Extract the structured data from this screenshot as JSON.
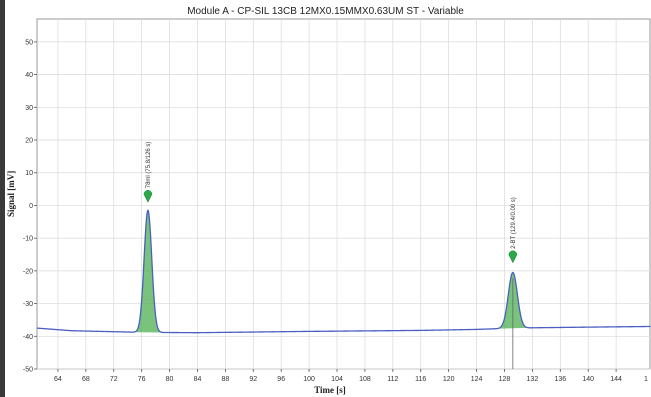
{
  "chart_data": {
    "type": "line",
    "title": "Module A - CP-SIL 13CB 12MX0.15MMX0.63UM ST - Variable",
    "xlabel": "Time [s]",
    "ylabel": "Signal [mV]",
    "xlim": [
      61,
      149
    ],
    "ylim": [
      -50,
      57
    ],
    "x_ticks": [
      64,
      68,
      72,
      76,
      80,
      84,
      88,
      92,
      96,
      100,
      104,
      108,
      112,
      116,
      120,
      124,
      128,
      132,
      136,
      140,
      144
    ],
    "x_tick_labels": [
      "64",
      "68",
      "72",
      "76",
      "80",
      "84",
      "88",
      "92",
      "96",
      "100",
      "104",
      "108",
      "112",
      "116",
      "120",
      "124",
      "128",
      "132",
      "136",
      "140",
      "144"
    ],
    "extra_tick_label": "1",
    "y_ticks": [
      -50,
      -40,
      -30,
      -20,
      -10,
      0,
      10,
      20,
      30,
      40,
      50
    ],
    "y_tick_labels": [
      "-50",
      "-40",
      "-30",
      "-20",
      "-10",
      "0",
      "10",
      "20",
      "30",
      "40",
      "50"
    ],
    "grid": true,
    "series": [
      {
        "values_desc": "signal trace",
        "color": "#4a5fc1",
        "baseline": [
          [
            61,
            -37.5
          ],
          [
            66,
            -38.3
          ],
          [
            72,
            -38.6
          ],
          [
            76,
            -38.8
          ],
          [
            84,
            -38.9
          ],
          [
            100,
            -38.5
          ],
          [
            116,
            -38.2
          ],
          [
            124,
            -37.9
          ],
          [
            128,
            -37.6
          ],
          [
            132,
            -37.4
          ],
          [
            140,
            -37.2
          ],
          [
            149,
            -37.0
          ]
        ],
        "peaks": [
          {
            "time": 76.9,
            "height": -1.5,
            "width": 0.55,
            "label": "78ml (75.8/126 s)",
            "marker_y": 2.5
          },
          {
            "time": 129.2,
            "height": -20.5,
            "width": 0.65,
            "label": "2-BT (129.4/0.00 s)",
            "marker_y": -16.0
          }
        ]
      }
    ],
    "colors": {
      "line": "#4a5fc1",
      "fill": "#4caf50",
      "marker": "#2aa84a",
      "grid": "#d9d9d9",
      "vline": "#666666"
    }
  }
}
